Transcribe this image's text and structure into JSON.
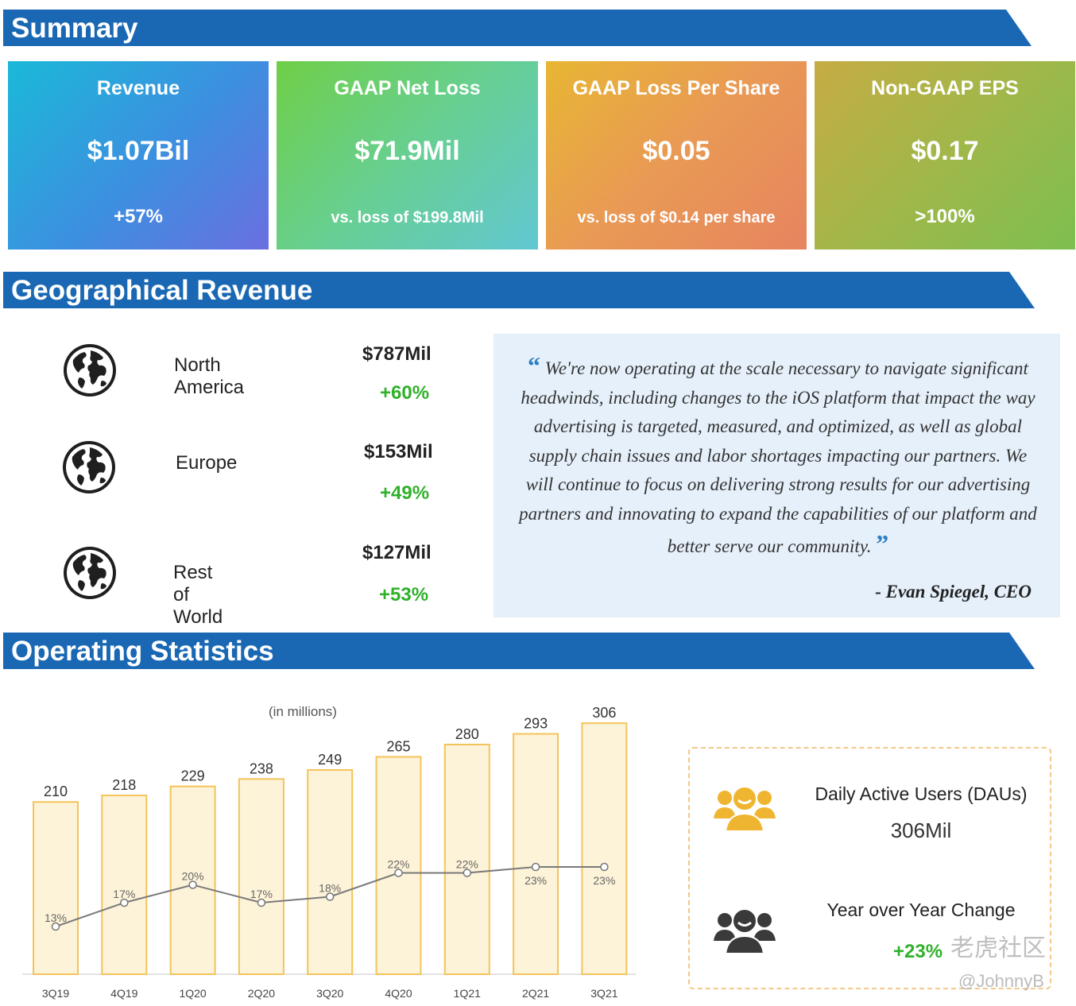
{
  "sections": {
    "summary": "Summary",
    "geo": "Geographical Revenue",
    "ops": "Operating Statistics"
  },
  "colors": {
    "section_bar": "#1a68b4",
    "growth_green": "#2fb12a",
    "bar_fill": "#fdf3d8",
    "bar_stroke": "#f3c45a",
    "quote_bg": "#e5f0fa",
    "dau_icon_gold": "#f0b530",
    "dau_icon_dark": "#3a3a3a"
  },
  "cards": [
    {
      "title": "Revenue",
      "value": "$1.07Bil",
      "sub": "+57%"
    },
    {
      "title": "GAAP Net Loss",
      "value": "$71.9Mil",
      "sub": "vs. loss of $199.8Mil"
    },
    {
      "title": "GAAP Loss Per Share",
      "value": "$0.05",
      "sub": "vs. loss of $0.14 per share"
    },
    {
      "title": "Non-GAAP EPS",
      "value": "$0.17",
      "sub": ">100%"
    }
  ],
  "regions": [
    {
      "name": "North America",
      "value": "$787Mil",
      "growth": "+60%",
      "icon": "globe-icon"
    },
    {
      "name": "Europe",
      "value": "$153Mil",
      "growth": "+49%",
      "icon": "globe-icon"
    },
    {
      "name": "Rest of World",
      "value": "$127Mil",
      "growth": "+53%",
      "icon": "globe-icon"
    }
  ],
  "quote": {
    "open_mark": "“",
    "text": "We're now operating at the scale necessary to navigate significant headwinds, including changes to the iOS platform that impact the way advertising is targeted, measured, and optimized, as well as global supply chain issues and labor shortages impacting our partners. We will continue to focus on delivering strong results for our advertising partners and innovating to expand the capabilities of our platform and better serve our community.",
    "close_mark": "”",
    "author": "- Evan Spiegel, CEO"
  },
  "chart_note": "(in millions)",
  "chart_data": {
    "type": "bar",
    "categories": [
      "3Q19",
      "4Q19",
      "1Q20",
      "2Q20",
      "3Q20",
      "4Q20",
      "1Q21",
      "2Q21",
      "3Q21"
    ],
    "series": [
      {
        "type": "bar",
        "values": [
          210,
          218,
          229,
          238,
          249,
          265,
          280,
          293,
          306
        ],
        "labels": [
          "210",
          "218",
          "229",
          "238",
          "249",
          "265",
          "280",
          "293",
          "306"
        ]
      },
      {
        "type": "line",
        "values": [
          13,
          17,
          20,
          17,
          18,
          22,
          22,
          23,
          23
        ],
        "labels": [
          "13%",
          "17%",
          "20%",
          "17%",
          "18%",
          "22%",
          "22%",
          "23%",
          "23%"
        ]
      }
    ],
    "title": "",
    "xlabel": "",
    "ylabel": "",
    "ylim": [
      0,
      310
    ],
    "ylim_line": [
      5,
      45
    ],
    "grid": false,
    "legend": "none"
  },
  "dau": {
    "label": "Daily Active Users (DAUs)",
    "value": "306Mil",
    "yoy_label": "Year over Year Change",
    "yoy_value": "+23%"
  },
  "watermark": {
    "main": "老虎社区",
    "sub": "@JohnnyB"
  }
}
